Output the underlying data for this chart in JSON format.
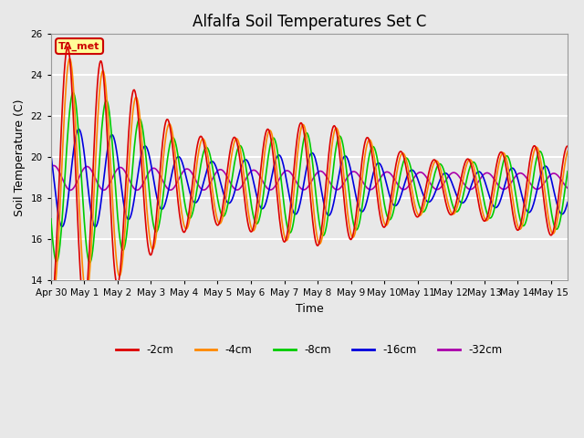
{
  "title": "Alfalfa Soil Temperatures Set C",
  "xlabel": "Time",
  "ylabel": "Soil Temperature (C)",
  "ylim": [
    14,
    26
  ],
  "background_color": "#e8e8e8",
  "grid_color": "white",
  "annotation_text": "TA_met",
  "annotation_box_color": "#ffff99",
  "annotation_border_color": "#cc0000",
  "series": {
    "-2cm": {
      "color": "#dd0000",
      "linewidth": 1.2
    },
    "-4cm": {
      "color": "#ff8800",
      "linewidth": 1.2
    },
    "-8cm": {
      "color": "#00cc00",
      "linewidth": 1.2
    },
    "-16cm": {
      "color": "#0000dd",
      "linewidth": 1.2
    },
    "-32cm": {
      "color": "#aa00aa",
      "linewidth": 1.2
    }
  },
  "yticks": [
    14,
    16,
    18,
    20,
    22,
    24,
    26
  ],
  "xtick_labels": [
    "Apr 30",
    "May 1",
    "May 2",
    "May 3",
    "May 4",
    "May 5",
    "May 6",
    "May 7",
    "May 8",
    "May 9",
    "May 10",
    "May 11",
    "May 12",
    "May 13",
    "May 14",
    "May 15"
  ],
  "title_fontsize": 12,
  "axis_fontsize": 9,
  "tick_fontsize": 7.5
}
